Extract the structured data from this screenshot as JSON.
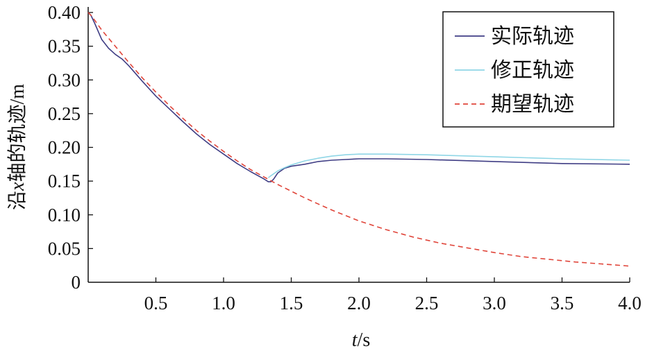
{
  "chart_data": {
    "type": "line",
    "xlabel": {
      "var": "t",
      "unit": "/s"
    },
    "ylabel": {
      "prefix": "沿",
      "var": "x",
      "suffix": "轴的轨迹/m"
    },
    "xlim": [
      0,
      4.0
    ],
    "ylim": [
      0,
      0.4
    ],
    "xticks": [
      {
        "value": 0.5,
        "label": "0.5"
      },
      {
        "value": 1.0,
        "label": "1.0"
      },
      {
        "value": 1.5,
        "label": "1.5"
      },
      {
        "value": 2.0,
        "label": "2.0"
      },
      {
        "value": 2.5,
        "label": "2.5"
      },
      {
        "value": 3.0,
        "label": "3.0"
      },
      {
        "value": 3.5,
        "label": "3.5"
      },
      {
        "value": 4.0,
        "label": "4.0"
      }
    ],
    "yticks": [
      {
        "value": 0,
        "label": "0"
      },
      {
        "value": 0.05,
        "label": "0.05"
      },
      {
        "value": 0.1,
        "label": "0.10"
      },
      {
        "value": 0.15,
        "label": "0.15"
      },
      {
        "value": 0.2,
        "label": "0.20"
      },
      {
        "value": 0.25,
        "label": "0.25"
      },
      {
        "value": 0.3,
        "label": "0.30"
      },
      {
        "value": 0.35,
        "label": "0.35"
      },
      {
        "value": 0.4,
        "label": "0.40"
      }
    ],
    "grid": false,
    "legend_position": "top-right",
    "series": [
      {
        "name": "实际轨迹",
        "color": "#3f3d84",
        "dash": "solid",
        "x": [
          0,
          0.02,
          0.05,
          0.1,
          0.15,
          0.2,
          0.25,
          0.3,
          0.4,
          0.5,
          0.6,
          0.7,
          0.8,
          0.9,
          1.0,
          1.1,
          1.2,
          1.3,
          1.33,
          1.35,
          1.37,
          1.4,
          1.45,
          1.5,
          1.6,
          1.7,
          1.8,
          1.9,
          2.0,
          2.1,
          2.2,
          2.5,
          3.0,
          3.5,
          4.0
        ],
        "y": [
          0.4,
          0.396,
          0.383,
          0.36,
          0.347,
          0.338,
          0.331,
          0.321,
          0.298,
          0.276,
          0.257,
          0.238,
          0.22,
          0.204,
          0.19,
          0.176,
          0.164,
          0.153,
          0.149,
          0.149,
          0.153,
          0.162,
          0.169,
          0.172,
          0.175,
          0.179,
          0.181,
          0.182,
          0.183,
          0.183,
          0.183,
          0.182,
          0.179,
          0.176,
          0.175
        ]
      },
      {
        "name": "修正轨迹",
        "color": "#8fd6e6",
        "dash": "solid",
        "x": [
          1.33,
          1.35,
          1.4,
          1.45,
          1.5,
          1.6,
          1.7,
          1.8,
          1.9,
          2.0,
          2.1,
          2.2,
          2.5,
          3.0,
          3.5,
          4.0
        ],
        "y": [
          0.155,
          0.158,
          0.165,
          0.17,
          0.174,
          0.18,
          0.184,
          0.187,
          0.189,
          0.19,
          0.19,
          0.19,
          0.189,
          0.186,
          0.183,
          0.181
        ]
      },
      {
        "name": "期望轨迹",
        "color": "#e0453a",
        "dash": "dashed",
        "x": [
          0,
          0.02,
          0.05,
          0.1,
          0.2,
          0.3,
          0.4,
          0.5,
          0.6,
          0.7,
          0.8,
          0.9,
          1.0,
          1.1,
          1.2,
          1.3,
          1.4,
          1.5,
          1.6,
          1.7,
          1.8,
          1.9,
          2.0,
          2.2,
          2.4,
          2.6,
          2.8,
          3.0,
          3.2,
          3.4,
          3.6,
          3.8,
          4.0
        ],
        "y": [
          0.4,
          0.396,
          0.388,
          0.374,
          0.35,
          0.326,
          0.303,
          0.282,
          0.262,
          0.243,
          0.225,
          0.209,
          0.194,
          0.18,
          0.167,
          0.156,
          0.145,
          0.135,
          0.125,
          0.116,
          0.107,
          0.099,
          0.091,
          0.078,
          0.067,
          0.058,
          0.051,
          0.044,
          0.038,
          0.034,
          0.03,
          0.027,
          0.024
        ]
      }
    ]
  }
}
